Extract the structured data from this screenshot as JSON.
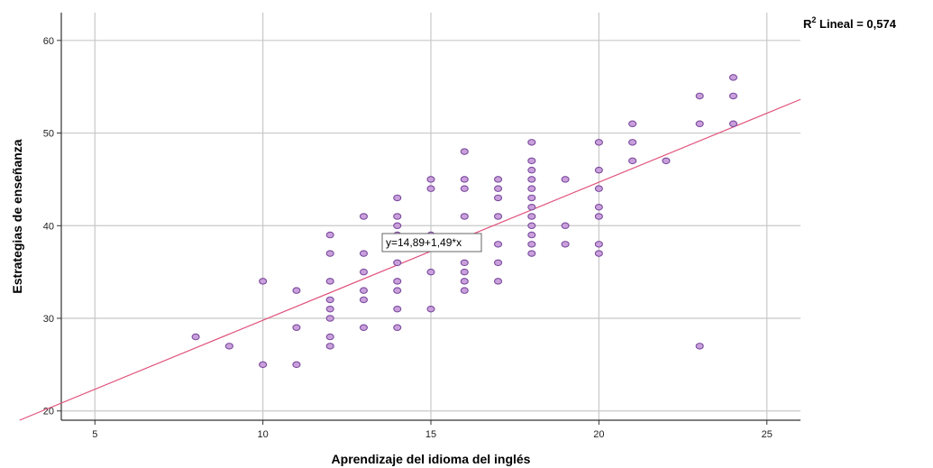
{
  "chart_data": {
    "type": "scatter",
    "xlabel": "Aprendizaje del idioma del inglés",
    "ylabel": "Estrategias de enseñanza",
    "xlim": [
      4,
      26
    ],
    "ylim": [
      19,
      63
    ],
    "xticks": [
      5,
      10,
      15,
      20,
      25
    ],
    "yticks": [
      20,
      30,
      40,
      50,
      60
    ],
    "grid": true,
    "r2_label": {
      "prefix": "R",
      "sup": "2",
      "text": " Lineal = 0,574"
    },
    "fit_line": {
      "intercept": 14.89,
      "slope": 1.49,
      "label": "y=14,89+1,49*x"
    },
    "colors": {
      "point_fill": "#c9a0dc",
      "point_stroke": "#7b4a9c",
      "line": "#e0507a",
      "grid": "#c8c8c8",
      "axis": "#333333"
    },
    "points": [
      [
        8,
        28
      ],
      [
        9,
        27
      ],
      [
        10,
        34
      ],
      [
        10,
        25
      ],
      [
        11,
        33
      ],
      [
        11,
        29
      ],
      [
        11,
        25
      ],
      [
        12,
        39
      ],
      [
        12,
        37
      ],
      [
        12,
        34
      ],
      [
        12,
        32
      ],
      [
        12,
        31
      ],
      [
        12,
        30
      ],
      [
        12,
        28
      ],
      [
        12,
        27
      ],
      [
        13,
        41
      ],
      [
        13,
        37
      ],
      [
        13,
        35
      ],
      [
        13,
        33
      ],
      [
        13,
        32
      ],
      [
        13,
        29
      ],
      [
        14,
        43
      ],
      [
        14,
        41
      ],
      [
        14,
        40
      ],
      [
        14,
        39
      ],
      [
        14,
        36
      ],
      [
        14,
        34
      ],
      [
        14,
        33
      ],
      [
        14,
        31
      ],
      [
        14,
        29
      ],
      [
        15,
        45
      ],
      [
        15,
        44
      ],
      [
        15,
        39
      ],
      [
        15,
        35
      ],
      [
        15,
        31
      ],
      [
        16,
        48
      ],
      [
        16,
        45
      ],
      [
        16,
        44
      ],
      [
        16,
        41
      ],
      [
        16,
        38
      ],
      [
        16,
        36
      ],
      [
        16,
        35
      ],
      [
        16,
        34
      ],
      [
        16,
        33
      ],
      [
        17,
        45
      ],
      [
        17,
        44
      ],
      [
        17,
        43
      ],
      [
        17,
        41
      ],
      [
        17,
        38
      ],
      [
        17,
        36
      ],
      [
        17,
        34
      ],
      [
        18,
        49
      ],
      [
        18,
        47
      ],
      [
        18,
        46
      ],
      [
        18,
        45
      ],
      [
        18,
        44
      ],
      [
        18,
        43
      ],
      [
        18,
        42
      ],
      [
        18,
        41
      ],
      [
        18,
        40
      ],
      [
        18,
        39
      ],
      [
        18,
        38
      ],
      [
        18,
        37
      ],
      [
        19,
        45
      ],
      [
        19,
        40
      ],
      [
        19,
        38
      ],
      [
        20,
        49
      ],
      [
        20,
        46
      ],
      [
        20,
        44
      ],
      [
        20,
        42
      ],
      [
        20,
        41
      ],
      [
        20,
        38
      ],
      [
        20,
        37
      ],
      [
        21,
        51
      ],
      [
        21,
        49
      ],
      [
        21,
        47
      ],
      [
        22,
        47
      ],
      [
        23,
        54
      ],
      [
        23,
        51
      ],
      [
        23,
        27
      ],
      [
        24,
        56
      ],
      [
        24,
        54
      ],
      [
        24,
        51
      ]
    ]
  }
}
